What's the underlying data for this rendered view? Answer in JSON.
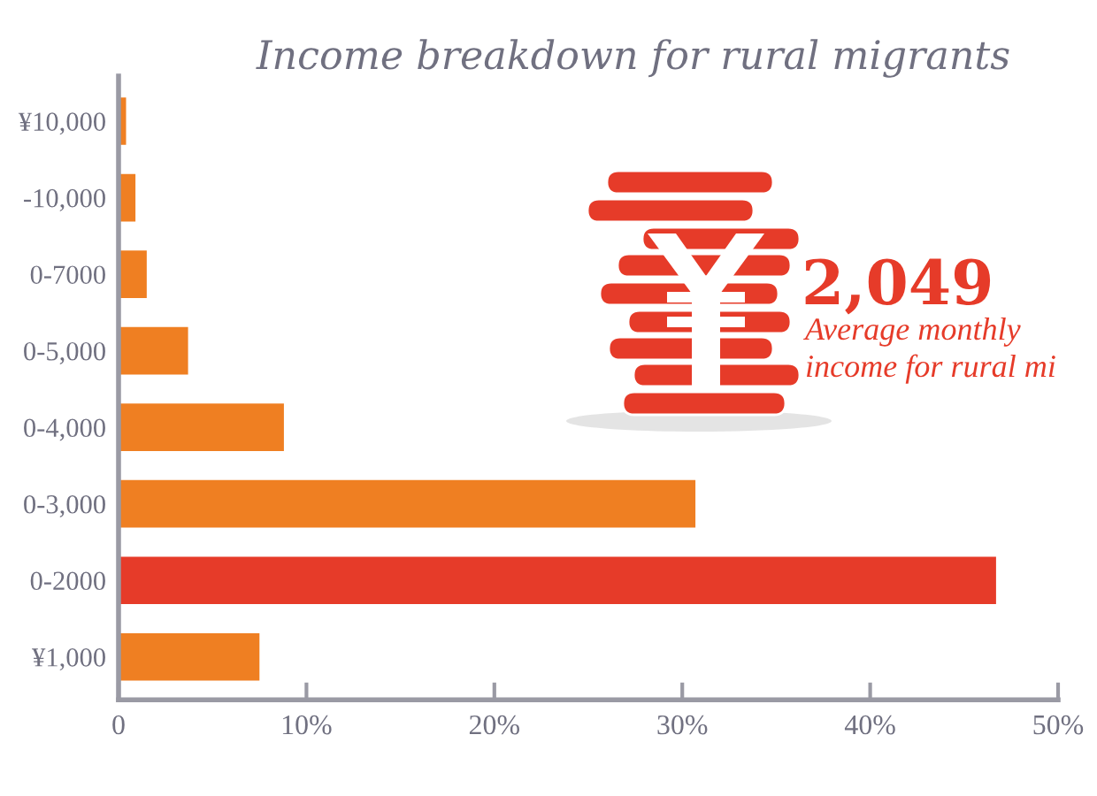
{
  "chart_data": {
    "type": "bar",
    "orientation": "horizontal",
    "title": "Income breakdown for rural migrants",
    "categories": [
      "¥10,000",
      "-10,000",
      "0-7000",
      "0-5,000",
      "0-4,000",
      "0-3,000",
      "0-2000",
      "¥1,000"
    ],
    "values": [
      0.4,
      0.9,
      1.5,
      3.7,
      8.8,
      30.7,
      46.7,
      7.5
    ],
    "colors": [
      "#ef7f22",
      "#ef7f22",
      "#ef7f22",
      "#ef7f22",
      "#ef7f22",
      "#ef7f22",
      "#e63b29",
      "#ef7f22"
    ],
    "xlim": [
      0,
      50
    ],
    "xticks": [
      0,
      {
        "value": 10,
        "label": "10%"
      },
      {
        "value": 20,
        "label": "20%"
      },
      {
        "value": 30,
        "label": "30%"
      },
      {
        "value": 40,
        "label": "40%"
      },
      {
        "value": 50,
        "label": "50%"
      }
    ],
    "annotations": [
      "2,049",
      "Average monthly",
      "income for rural mi"
    ]
  }
}
